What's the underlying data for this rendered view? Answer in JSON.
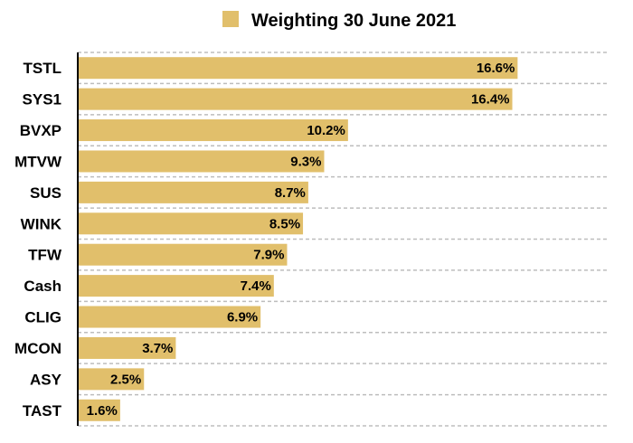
{
  "chart_data": {
    "type": "bar",
    "orientation": "horizontal",
    "categories": [
      "TSTL",
      "SYS1",
      "BVXP",
      "MTVW",
      "SUS",
      "WINK",
      "TFW",
      "Cash",
      "CLIG",
      "MCON",
      "ASY",
      "TAST"
    ],
    "series": [
      {
        "name": "Weighting 30 June 2021",
        "values": [
          16.6,
          16.4,
          10.2,
          9.3,
          8.7,
          8.5,
          7.9,
          7.4,
          6.9,
          3.7,
          2.5,
          1.6
        ],
        "labels": [
          "16.6%",
          "16.4%",
          "10.2%",
          "9.3%",
          "8.7%",
          "8.5%",
          "7.9%",
          "7.4%",
          "6.9%",
          "3.7%",
          "2.5%",
          "1.6%"
        ]
      }
    ],
    "xlim": [
      0,
      20
    ],
    "grid": true,
    "legend_position": "top",
    "colors": {
      "bar": "#E1BF6B",
      "grid": "#BDBDBD",
      "axis": "#000000"
    }
  }
}
